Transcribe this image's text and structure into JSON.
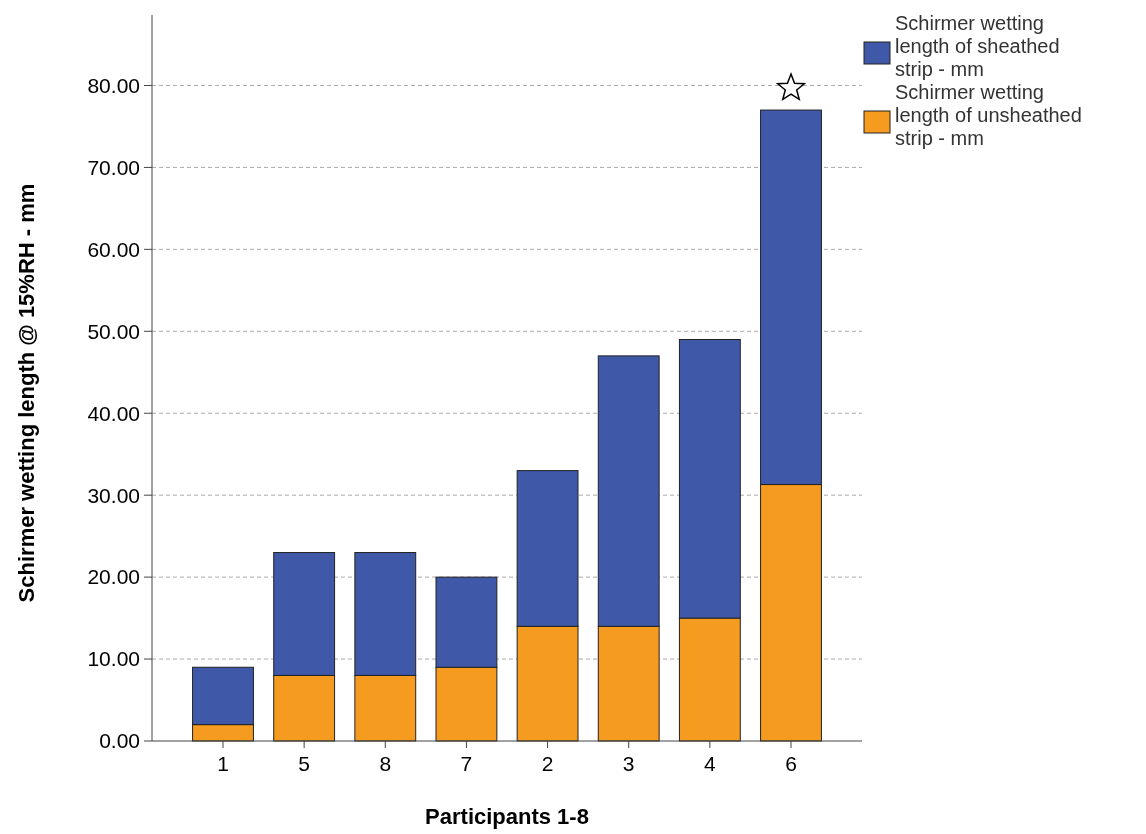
{
  "chart_data": {
    "type": "bar",
    "stacked": true,
    "xlabel": "Participants 1-8",
    "ylabel": "Schirmer wetting length @ 15%RH - mm",
    "categories": [
      "1",
      "5",
      "8",
      "7",
      "2",
      "3",
      "4",
      "6"
    ],
    "series": [
      {
        "name": "Schirmer wetting length of unsheathed strip - mm",
        "color": "#f59b1f",
        "values": [
          2,
          8,
          8,
          9,
          14,
          14,
          15,
          31.3
        ]
      },
      {
        "name": "Schirmer wetting length of sheathed strip - mm",
        "color": "#3f59a8",
        "values": [
          7,
          15,
          15,
          11,
          19,
          33,
          34,
          45.7
        ]
      }
    ],
    "ylim": [
      0,
      88.6
    ],
    "yticks": [
      {
        "value": 0,
        "label": "0.00"
      },
      {
        "value": 10,
        "label": "10.00"
      },
      {
        "value": 20,
        "label": "20.00"
      },
      {
        "value": 30,
        "label": "30.00"
      },
      {
        "value": 40,
        "label": "40.00"
      },
      {
        "value": 50,
        "label": "50.00"
      },
      {
        "value": 60,
        "label": "60.00"
      },
      {
        "value": 70,
        "label": "70.00"
      },
      {
        "value": 80,
        "label": "80.00"
      }
    ],
    "grid": "y",
    "legend": "right"
  }
}
